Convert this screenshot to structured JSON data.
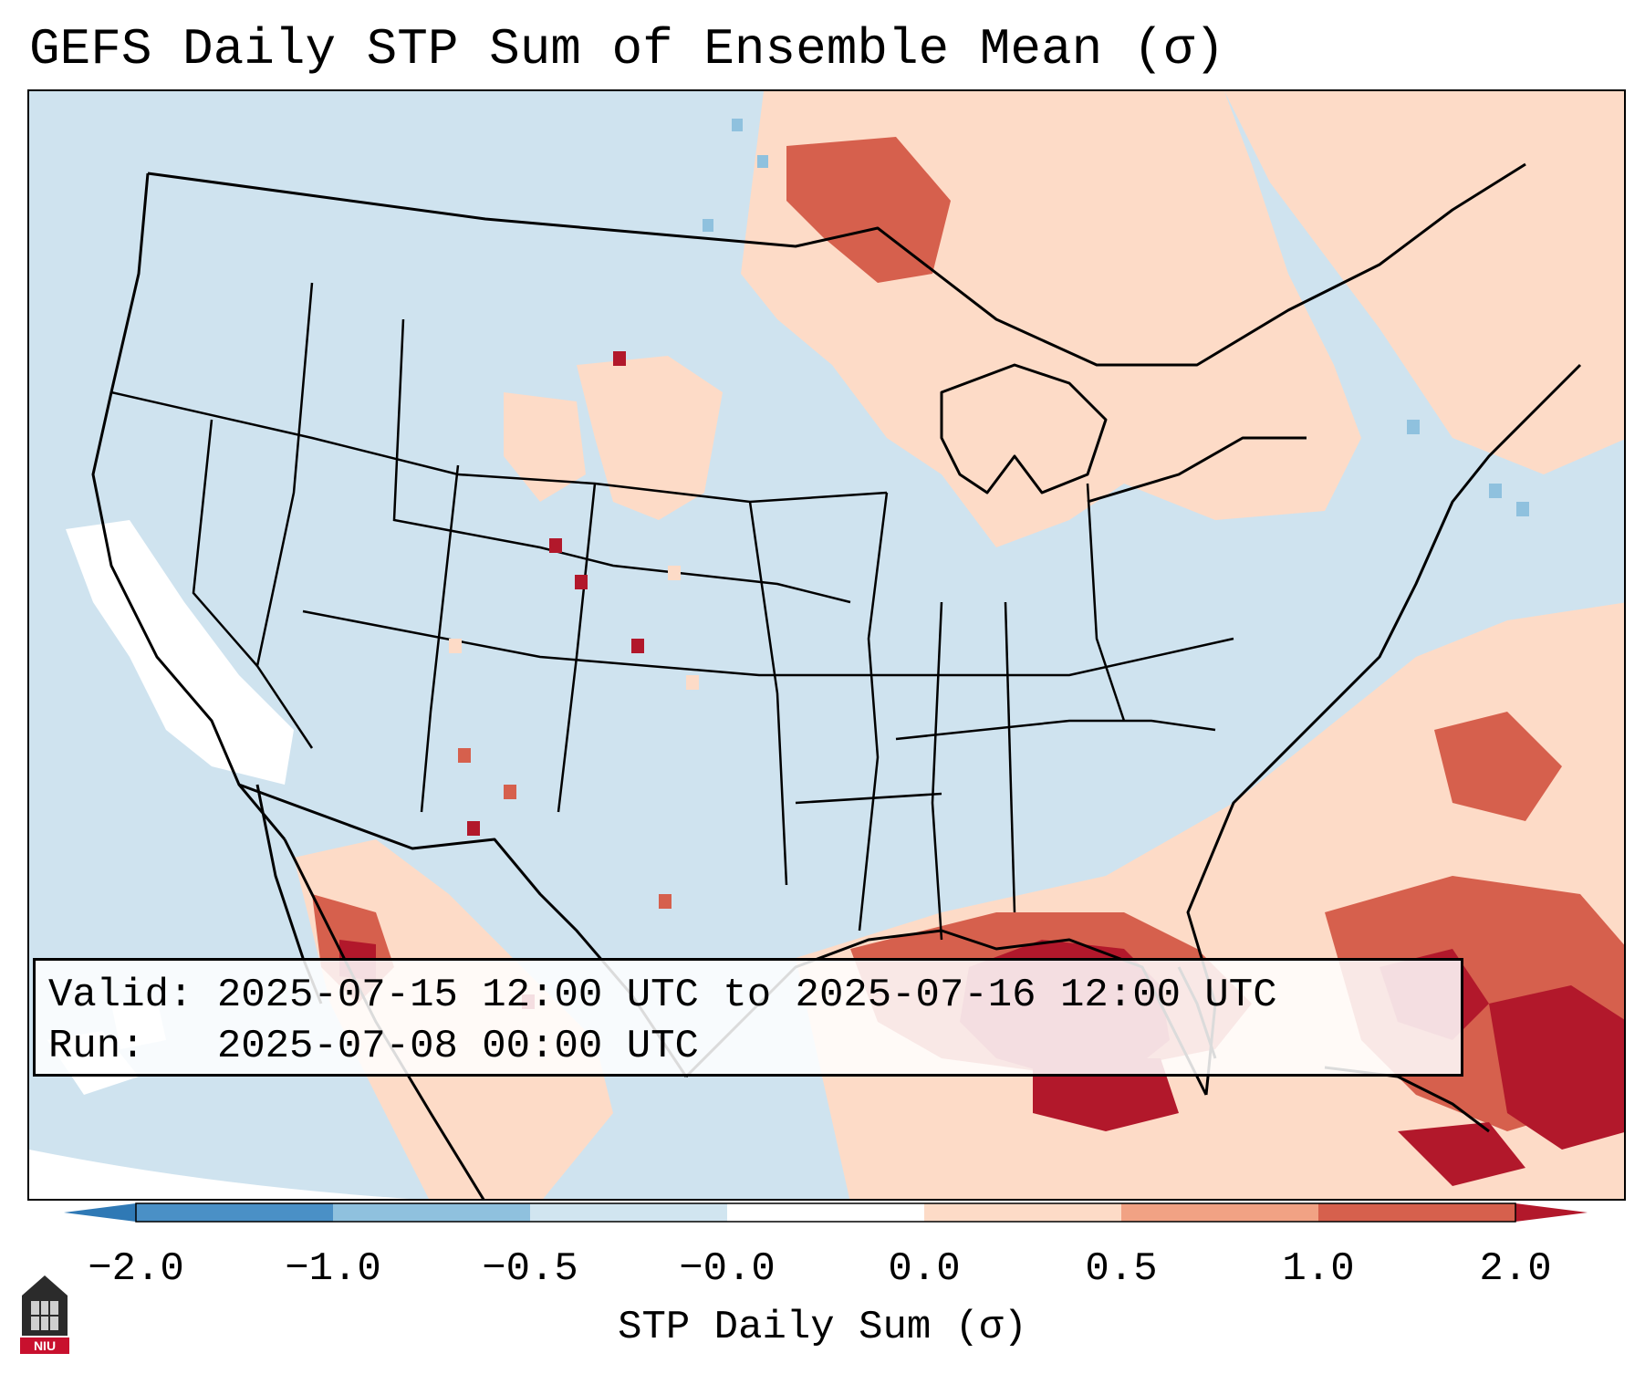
{
  "title": "GEFS Daily STP Sum of Ensemble Mean (σ)",
  "valid_line": "Valid: 2025-07-15 12:00 UTC to 2025-07-16 12:00 UTC",
  "run_line": "Run:   2025-07-08 00:00 UTC",
  "colorbar": {
    "label": "STP Daily Sum (σ)",
    "ticks": [
      "−2.0",
      "−1.0",
      "−0.5",
      "−0.0",
      "0.0",
      "0.5",
      "1.0",
      "2.0"
    ],
    "bins": [
      {
        "range": [
          -2.0,
          -1.0
        ],
        "color": "#4a90c6"
      },
      {
        "range": [
          -1.0,
          -0.5
        ],
        "color": "#8fc1de"
      },
      {
        "range": [
          -0.5,
          -0.0
        ],
        "color": "#d1e5f0"
      },
      {
        "range": [
          -0.0,
          0.0
        ],
        "color": "#ffffff"
      },
      {
        "range": [
          0.0,
          0.5
        ],
        "color": "#fddbc7"
      },
      {
        "range": [
          0.5,
          1.0
        ],
        "color": "#f1a284"
      },
      {
        "range": [
          1.0,
          2.0
        ],
        "color": "#d6604d"
      }
    ],
    "under_color": "#2f79b5",
    "over_color": "#b2182b"
  },
  "colors": {
    "background_near_zero_neg": "#cfe3ef",
    "strong_positive": "#b2182b",
    "moderate_positive": "#d6604d",
    "weak_positive": "#fddbc7",
    "weak_negative": "#8fc1de",
    "zero": "#ffffff"
  },
  "logo_text": "NIU"
}
